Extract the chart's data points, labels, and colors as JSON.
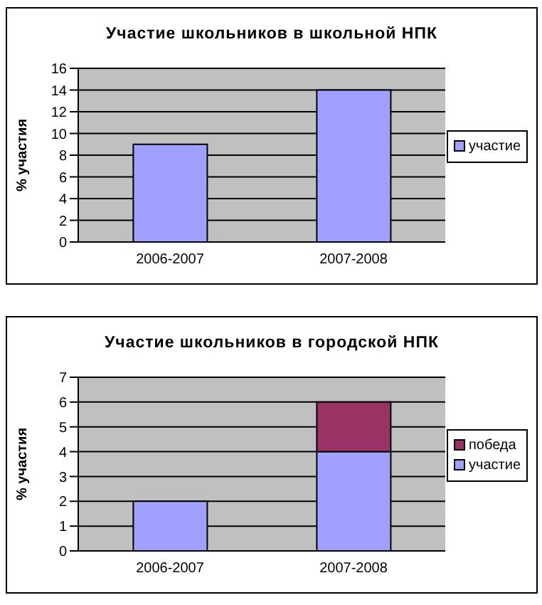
{
  "chart_data": [
    {
      "type": "bar",
      "title": "Участие школьников в школьной НПК",
      "ylabel": "% участия",
      "categories": [
        "2006-2007",
        "2007-2008"
      ],
      "series": [
        {
          "name": "участие",
          "color": "#a0a0ff",
          "values": [
            9,
            14
          ]
        }
      ],
      "ylim": [
        0,
        16
      ],
      "yticks": [
        0,
        2,
        4,
        6,
        8,
        10,
        12,
        14,
        16
      ],
      "grid": "y",
      "legend": "right"
    },
    {
      "type": "bar",
      "title": "Участие школьников в городской НПК",
      "ylabel": "% участия",
      "categories": [
        "2006-2007",
        "2007-2008"
      ],
      "stacked": true,
      "series": [
        {
          "name": "участие",
          "color": "#a0a0ff",
          "values": [
            2,
            4
          ]
        },
        {
          "name": "победа",
          "color": "#993366",
          "values": [
            null,
            2
          ]
        }
      ],
      "ylim": [
        0,
        7
      ],
      "yticks": [
        0,
        1,
        2,
        3,
        4,
        5,
        6,
        7
      ],
      "grid": "y",
      "legend": "right"
    }
  ]
}
